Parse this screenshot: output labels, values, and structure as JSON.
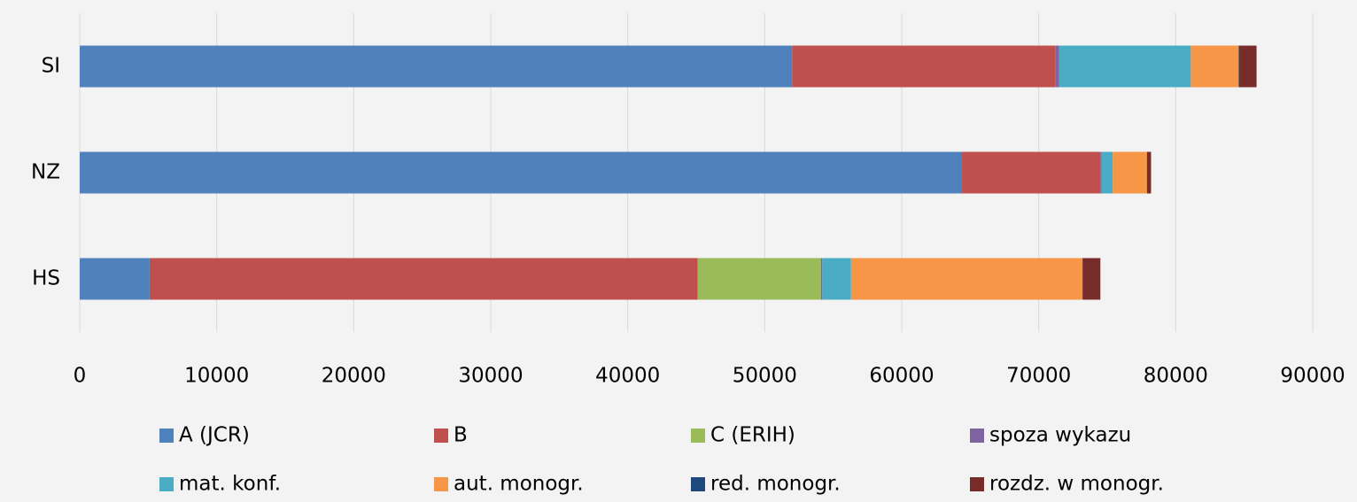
{
  "chart_data": {
    "type": "stacked_barh",
    "categories": [
      "SI",
      "NZ",
      "HS"
    ],
    "series": [
      {
        "name": "A (JCR)",
        "color": "#4f81bd",
        "values": [
          52000,
          64400,
          5100
        ]
      },
      {
        "name": "B",
        "color": "#c0504d",
        "values": [
          19200,
          10100,
          40000
        ]
      },
      {
        "name": "C (ERIH)",
        "color": "#9bbb59",
        "values": [
          0,
          0,
          9000
        ]
      },
      {
        "name": "spoza wykazu",
        "color": "#8064a2",
        "values": [
          300,
          100,
          100
        ]
      },
      {
        "name": "mat. konf.",
        "color": "#4bacc6",
        "values": [
          9600,
          800,
          2100
        ]
      },
      {
        "name": "aut. monogr.",
        "color": "#f79646",
        "values": [
          3500,
          2500,
          16900
        ]
      },
      {
        "name": "red. monogr.",
        "color": "#1f497d",
        "values": [
          100,
          0,
          0
        ]
      },
      {
        "name": "rozdz. w monogr.",
        "color": "#772c2a",
        "values": [
          1200,
          300,
          1300
        ]
      }
    ],
    "xlim": [
      0,
      90000
    ],
    "xticks": [
      0,
      10000,
      20000,
      30000,
      40000,
      50000,
      60000,
      70000,
      80000,
      90000
    ],
    "grid": true,
    "legend": "bottom"
  }
}
